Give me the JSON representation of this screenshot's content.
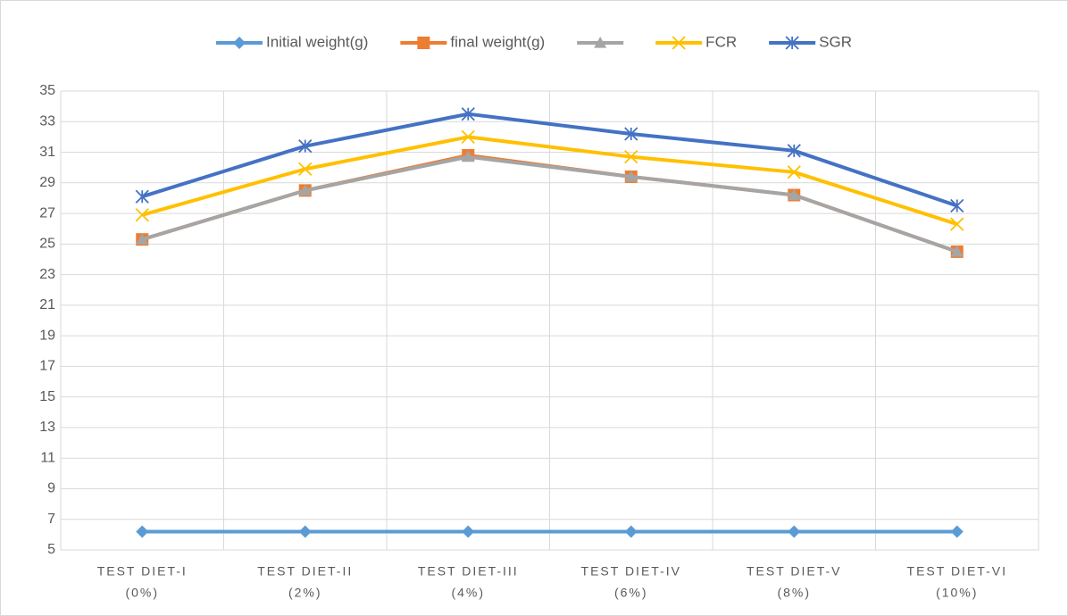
{
  "chart_data": {
    "type": "line",
    "categories": [
      [
        "TEST DIET-I",
        "(0%)"
      ],
      [
        "TEST DIET-II",
        "(2%)"
      ],
      [
        "TEST DIET-III",
        "(4%)"
      ],
      [
        "TEST DIET-IV",
        "(6%)"
      ],
      [
        "TEST DIET-V",
        "(8%)"
      ],
      [
        "TEST DIET-VI",
        "(10%)"
      ]
    ],
    "series": [
      {
        "name": "Initial weight(g)",
        "color": "#5b9bd5",
        "marker": "diamond",
        "values": [
          6.2,
          6.2,
          6.2,
          6.2,
          6.2,
          6.2
        ]
      },
      {
        "name": "final weight(g)",
        "color": "#ed7d31",
        "marker": "square",
        "values": [
          25.3,
          28.5,
          30.8,
          29.4,
          28.2,
          24.5
        ]
      },
      {
        "color": "#a5a5a5",
        "marker": "triangle",
        "values": [
          25.3,
          28.5,
          30.7,
          29.4,
          28.2,
          24.5
        ]
      },
      {
        "name": "FCR",
        "color": "#ffc000",
        "marker": "x",
        "values": [
          26.9,
          29.9,
          32.0,
          30.7,
          29.7,
          26.3
        ]
      },
      {
        "name": "SGR",
        "color": "#4472c4",
        "marker": "star",
        "values": [
          28.1,
          31.4,
          33.5,
          32.2,
          31.1,
          27.5
        ]
      }
    ],
    "ylim": [
      5,
      35
    ],
    "yticks": [
      5,
      7,
      9,
      11,
      13,
      15,
      17,
      19,
      21,
      23,
      25,
      27,
      29,
      31,
      33,
      35
    ],
    "grid": true,
    "legend": "top"
  }
}
